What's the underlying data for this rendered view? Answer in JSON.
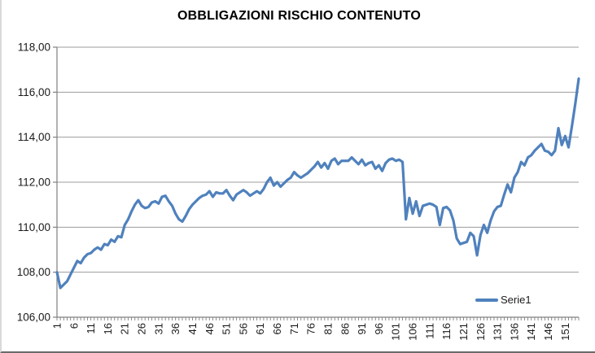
{
  "chart_data": {
    "type": "line",
    "title": "OBBLIGAZIONI RISCHIO CONTENUTO",
    "xlabel": "",
    "ylabel": "",
    "ylim": [
      106,
      118
    ],
    "y_tick_step": 2,
    "y_tick_labels": [
      "106,00",
      "108,00",
      "110,00",
      "112,00",
      "114,00",
      "116,00",
      "118,00"
    ],
    "x_tick_labels": [
      "1",
      "6",
      "11",
      "16",
      "21",
      "26",
      "31",
      "36",
      "41",
      "46",
      "51",
      "56",
      "61",
      "66",
      "71",
      "76",
      "81",
      "86",
      "91",
      "96",
      "101",
      "106",
      "111",
      "116",
      "121",
      "126",
      "131",
      "136",
      "141",
      "146",
      "151"
    ],
    "x_label_step": 5,
    "grid": true,
    "legend_position": "bottom-right",
    "colors": {
      "series": "#4F81BD",
      "gridline": "#9c9c9c",
      "axis": "#808080",
      "tick_text": "#1a1a1a",
      "title_text": "#000000"
    },
    "series": [
      {
        "name": "Serie1",
        "color": "#4F81BD",
        "values": [
          108.0,
          107.3,
          107.45,
          107.6,
          107.9,
          108.2,
          108.5,
          108.4,
          108.65,
          108.8,
          108.85,
          109.0,
          109.1,
          109.0,
          109.25,
          109.2,
          109.45,
          109.35,
          109.6,
          109.55,
          110.1,
          110.35,
          110.7,
          111.0,
          111.2,
          110.95,
          110.85,
          110.9,
          111.1,
          111.15,
          111.05,
          111.35,
          111.4,
          111.15,
          110.95,
          110.6,
          110.35,
          110.25,
          110.5,
          110.8,
          111.0,
          111.15,
          111.3,
          111.4,
          111.45,
          111.6,
          111.35,
          111.55,
          111.5,
          111.5,
          111.65,
          111.4,
          111.2,
          111.45,
          111.55,
          111.65,
          111.55,
          111.4,
          111.5,
          111.6,
          111.5,
          111.7,
          112.0,
          112.2,
          111.85,
          112.0,
          111.8,
          111.95,
          112.1,
          112.2,
          112.45,
          112.3,
          112.2,
          112.3,
          112.4,
          112.55,
          112.7,
          112.9,
          112.65,
          112.85,
          112.6,
          112.95,
          113.05,
          112.8,
          112.95,
          112.95,
          112.95,
          113.1,
          112.95,
          112.8,
          113.0,
          112.75,
          112.85,
          112.9,
          112.6,
          112.75,
          112.5,
          112.85,
          113.0,
          113.05,
          112.95,
          113.0,
          112.9,
          110.35,
          111.3,
          110.6,
          111.15,
          110.5,
          110.95,
          111.0,
          111.05,
          111.0,
          110.9,
          110.1,
          110.85,
          110.9,
          110.75,
          110.3,
          109.5,
          109.25,
          109.3,
          109.35,
          109.75,
          109.6,
          108.75,
          109.65,
          110.1,
          109.75,
          110.3,
          110.7,
          110.9,
          110.95,
          111.45,
          111.9,
          111.55,
          112.2,
          112.45,
          112.9,
          112.75,
          113.1,
          113.2,
          113.4,
          113.55,
          113.7,
          113.4,
          113.35,
          113.2,
          113.4,
          114.4,
          113.65,
          114.05,
          113.55,
          114.5,
          115.5,
          116.6
        ]
      }
    ]
  }
}
